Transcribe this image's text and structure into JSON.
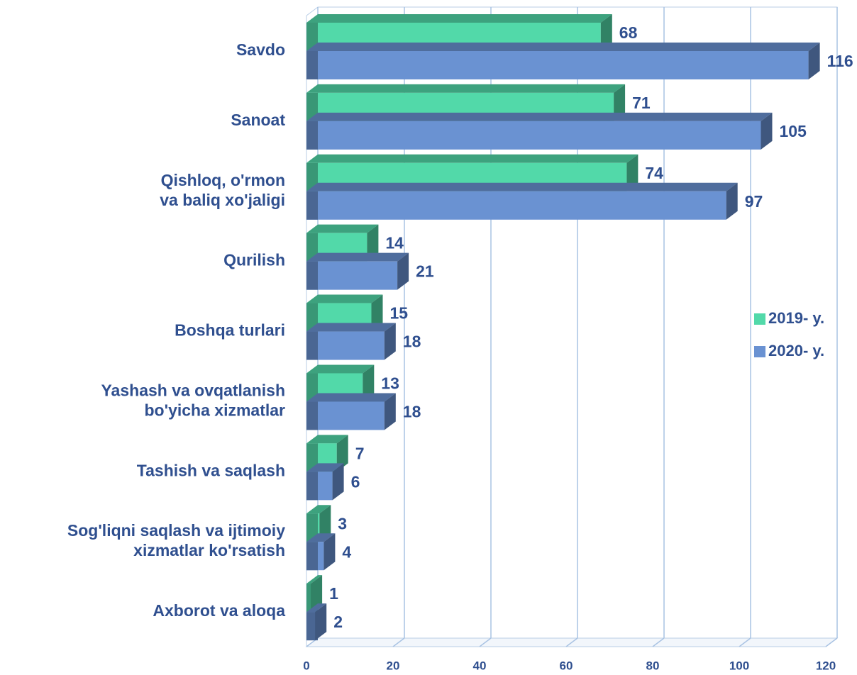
{
  "chart_data": {
    "type": "bar3d_horizontal",
    "categories": [
      "Savdo",
      "Sanoat",
      "Qishloq, o'rmon\nva baliq xo'jaligi",
      "Qurilish",
      "Boshqa turlari",
      "Yashash va ovqatlanish\nbo'yicha xizmatlar",
      "Tashish va saqlash",
      "Sog'liqni saqlash va ijtimoiy\nxizmatlar ko'rsatish",
      "Axborot va aloqa"
    ],
    "series": [
      {
        "name": "2019- y.",
        "color": "#52d9a9",
        "values": [
          68,
          71,
          74,
          14,
          15,
          13,
          7,
          3,
          1
        ]
      },
      {
        "name": "2020- y.",
        "color": "#6a92d2",
        "values": [
          116,
          105,
          97,
          21,
          18,
          18,
          6,
          4,
          2
        ]
      }
    ],
    "xlim": [
      0,
      120
    ],
    "xticks": [
      0,
      20,
      40,
      60,
      80,
      100,
      120
    ],
    "grid": true,
    "legend": "right"
  }
}
